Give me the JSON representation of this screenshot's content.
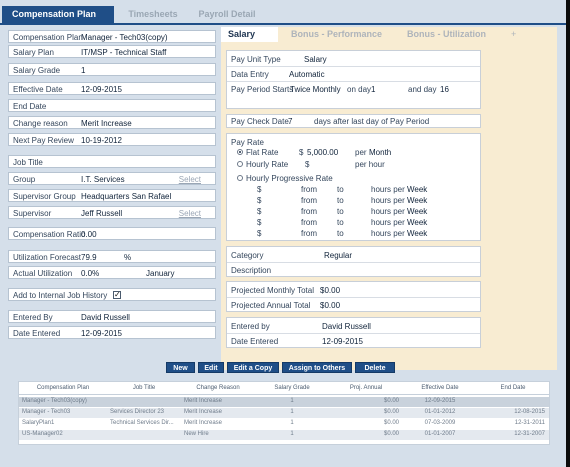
{
  "tabs": [
    "Compensation Plan",
    "Timesheets",
    "Payroll Detail"
  ],
  "left_fields": [
    {
      "label": "Compensation Plan",
      "value": "Manager - Tech03(copy)"
    },
    {
      "label": "Salary Plan",
      "value": "IT/MSP - Technical Staff"
    },
    {
      "label": "Salary Grade",
      "value": "1"
    },
    {
      "label": "Effective Date",
      "value": "12-09-2015"
    },
    {
      "label": "End Date",
      "value": ""
    },
    {
      "label": "Change reason",
      "value": "Merit Increase"
    },
    {
      "label": "Next Pay Review",
      "value": "10-19-2012"
    },
    {
      "label": "Job Title",
      "value": ""
    },
    {
      "label": "Group",
      "value": "I.T. Services",
      "select": "Select"
    },
    {
      "label": "Supervisor Group",
      "value": "Headquarters San Rafael"
    },
    {
      "label": "Supervisor",
      "value": "Jeff Russell",
      "select": "Select"
    },
    {
      "label": "Compensation Ratio",
      "value": "0.00"
    },
    {
      "label": "Utilization Forecast",
      "value": "79.9",
      "unit": "%"
    },
    {
      "label": "Actual Utilization",
      "value": "0.0%",
      "unit": "January"
    },
    {
      "label": "Add to Internal Job History",
      "checked": "✓"
    },
    {
      "label": "Entered By",
      "value": "David Russell"
    },
    {
      "label": "Date Entered",
      "value": "12-09-2015"
    }
  ],
  "right_tabs": [
    "Salary",
    "Bonus - Performance",
    "Bonus - Utilization",
    "+"
  ],
  "salary": {
    "pay_unit_type_label": "Pay Unit Type",
    "pay_unit_type": "Salary",
    "data_entry_label": "Data Entry",
    "data_entry": "Automatic",
    "pay_period_label": "Pay Period Starts",
    "pay_period": "Twice Monthly",
    "on_day_label": "on day",
    "on_day": "1",
    "and_day_label": "and day",
    "and_day": "16",
    "pay_check_label": "Pay Check Date",
    "pay_check_days": "7",
    "pay_check_suffix": "days after last day of Pay Period",
    "pay_rate_label": "Pay Rate",
    "flat_rate_label": "Flat Rate",
    "flat_rate_currency": "$",
    "flat_rate_value": "5,000.00",
    "flat_rate_per": "per",
    "flat_rate_period": "Month",
    "hourly_rate_label": "Hourly Rate",
    "hourly_currency": "$",
    "hourly_per": "per hour",
    "progressive_label": "Hourly Progressive Rate",
    "progressive_rows": [
      {
        "cur": "$",
        "from": "from",
        "to": "to",
        "per": "hours per",
        "period": "Week"
      },
      {
        "cur": "$",
        "from": "from",
        "to": "to",
        "per": "hours per",
        "period": "Week"
      },
      {
        "cur": "$",
        "from": "from",
        "to": "to",
        "per": "hours per",
        "period": "Week"
      },
      {
        "cur": "$",
        "from": "from",
        "to": "to",
        "per": "hours per",
        "period": "Week"
      },
      {
        "cur": "$",
        "from": "from",
        "to": "to",
        "per": "hours per",
        "period": "Week"
      }
    ],
    "category_label": "Category",
    "category": "Regular",
    "description_label": "Description",
    "monthly_label": "Projected Monthly Total",
    "monthly": "$0.00",
    "annual_label": "Projected Annual Total",
    "annual": "$0.00",
    "entered_by_label": "Entered by",
    "entered_by": "David Russell",
    "date_entered_label": "Date Entered",
    "date_entered": "12-09-2015"
  },
  "buttons": [
    "New",
    "Edit",
    "Edit a Copy",
    "Assign to Others",
    "Delete"
  ],
  "table": {
    "columns": [
      "Compensation Plan",
      "Job Title",
      "Change Reason",
      "Salary Grade",
      "Proj. Annual",
      "Effective Date",
      "End Date"
    ],
    "rows": [
      [
        "Manager - Tech03(copy)",
        "",
        "Merit Increase",
        "1",
        "$0.00",
        "12-09-2015",
        ""
      ],
      [
        "Manager - Tech03",
        "Services Director 23",
        "Merit Increase",
        "1",
        "$0.00",
        "01-01-2012",
        "12-08-2015"
      ],
      [
        "SalaryPlan1",
        "Technical Services Dir...",
        "Merit Increase",
        "1",
        "$0.00",
        "07-03-2009",
        "12-31-2011"
      ],
      [
        "US-Manager02",
        "",
        "New Hire",
        "1",
        "$0.00",
        "01-01-2007",
        "12-31-2007"
      ]
    ]
  },
  "colors": {
    "accent": "#1f4e87",
    "panel": "#f8ecd2",
    "background": "#d5dfea"
  }
}
